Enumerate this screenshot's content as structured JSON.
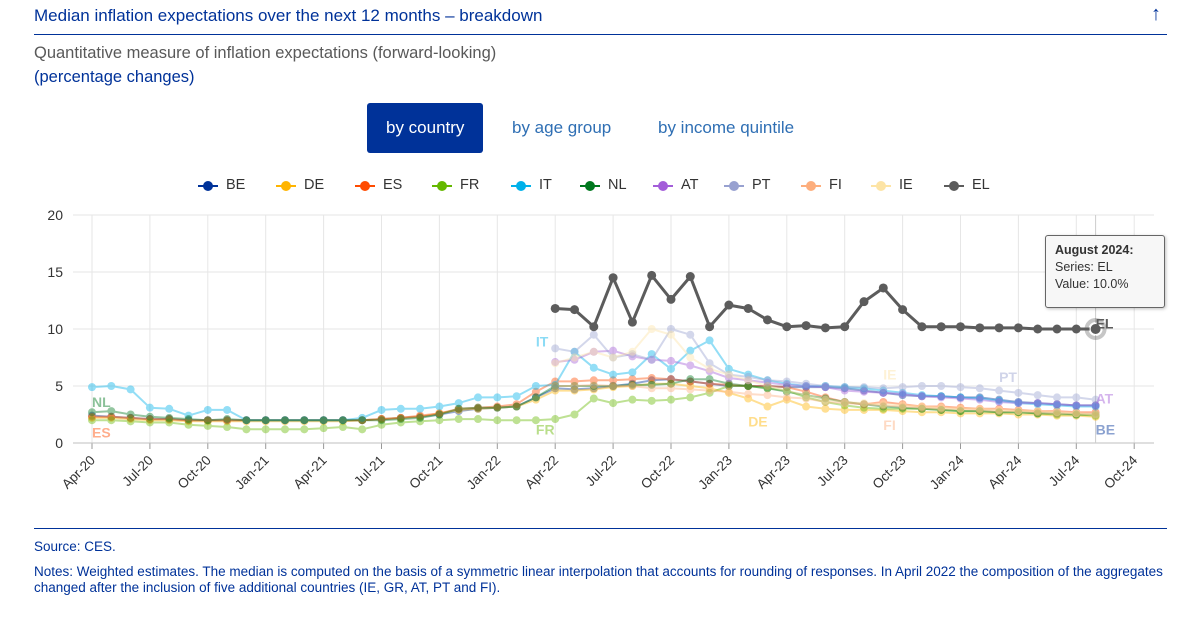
{
  "header": {
    "title": "Median inflation expectations over the next 12 months – breakdown",
    "arrow_icon": "arrow-up-icon"
  },
  "subtitle": "Quantitative measure of inflation expectations (forward-looking)",
  "subtitle2": "(percentage changes)",
  "tabs": [
    {
      "label": "by country",
      "active": true
    },
    {
      "label": "by age group",
      "active": false
    },
    {
      "label": "by income quintile",
      "active": false
    }
  ],
  "tooltip": {
    "title": "August 2024:",
    "series": "Series: EL",
    "value": "Value: 10.0%"
  },
  "footer": {
    "source": "Source: CES.",
    "notes": "Notes: Weighted estimates. The median is computed on the basis of a symmetric linear interpolation that accounts for rounding of responses. In April 2022 the composition of the aggregates changed after the inclusion of five additional countries (IE, GR, AT, PT and FI)."
  },
  "chart_data": {
    "type": "line",
    "title": "",
    "xlabel": "",
    "ylabel": "",
    "ylim": [
      0,
      20
    ],
    "yticks": [
      "0",
      "5",
      "10",
      "15",
      "20"
    ],
    "xticks": [
      "Apr-20",
      "Jul-20",
      "Oct-20",
      "Jan-21",
      "Apr-21",
      "Jul-21",
      "Oct-21",
      "Jan-22",
      "Apr-22",
      "Jul-22",
      "Oct-22",
      "Jan-23",
      "Apr-23",
      "Jul-23",
      "Oct-23",
      "Jan-24",
      "Apr-24",
      "Jul-24",
      "Oct-24"
    ],
    "xtick_month_index": [
      0,
      3,
      6,
      9,
      12,
      15,
      18,
      21,
      24,
      27,
      30,
      33,
      36,
      39,
      42,
      45,
      48,
      51,
      54
    ],
    "x_start": "Apr-20",
    "x_end": "Aug-24",
    "grid": true,
    "legend_position": "top",
    "highlighted_series": "EL",
    "series": [
      {
        "name": "BE",
        "color": "#003299",
        "start_index": 0,
        "values": [
          2.4,
          2.3,
          2.2,
          2.1,
          2.1,
          2.0,
          2.0,
          2.0,
          2.0,
          2.0,
          2.0,
          2.0,
          2.0,
          2.0,
          2.0,
          2.1,
          2.2,
          2.3,
          2.5,
          2.8,
          3.0,
          3.1,
          3.2,
          4.0,
          4.8,
          4.7,
          4.8,
          5.0,
          5.2,
          5.5,
          5.6,
          5.4,
          5.2,
          5.0,
          5.0,
          5.0,
          4.9,
          4.9,
          4.9,
          4.8,
          4.6,
          4.4,
          4.2,
          4.1,
          4.1,
          4.0,
          4.0,
          3.8,
          3.6,
          3.5,
          3.4,
          3.3,
          3.3
        ]
      },
      {
        "name": "DE",
        "color": "#ffb400",
        "start_index": 0,
        "values": [
          2.2,
          2.2,
          2.1,
          2.0,
          2.0,
          1.9,
          1.9,
          1.9,
          1.9,
          1.9,
          1.9,
          1.9,
          1.9,
          1.9,
          2.0,
          2.1,
          2.2,
          2.3,
          2.6,
          2.9,
          3.0,
          3.1,
          3.2,
          3.8,
          4.6,
          4.6,
          4.7,
          4.9,
          5.0,
          5.2,
          5.2,
          5.0,
          4.8,
          4.4,
          3.9,
          3.2,
          3.8,
          3.2,
          3.0,
          2.9,
          2.9,
          2.9,
          2.8,
          2.7,
          2.7,
          2.6,
          2.6,
          2.6,
          2.5,
          2.5,
          2.4,
          2.4,
          2.3
        ]
      },
      {
        "name": "ES",
        "color": "#ff4b00",
        "start_index": 0,
        "values": [
          2.3,
          2.3,
          2.2,
          2.1,
          2.1,
          2.0,
          2.0,
          2.0,
          2.0,
          2.0,
          2.0,
          2.0,
          2.0,
          2.0,
          2.0,
          2.1,
          2.2,
          2.4,
          2.6,
          3.0,
          3.1,
          3.2,
          3.4,
          4.5,
          5.4,
          5.4,
          5.5,
          5.5,
          5.6,
          5.7,
          5.6,
          5.4,
          5.2,
          5.1,
          5.0,
          5.0,
          4.9,
          4.5,
          4.0,
          3.6,
          3.4,
          3.6,
          3.4,
          3.2,
          3.2,
          3.1,
          3.0,
          3.0,
          2.9,
          2.8,
          2.8,
          2.7,
          2.7
        ]
      },
      {
        "name": "FR",
        "color": "#65b800",
        "start_index": 0,
        "values": [
          2.0,
          2.0,
          1.9,
          1.8,
          1.8,
          1.6,
          1.5,
          1.4,
          1.2,
          1.2,
          1.2,
          1.2,
          1.3,
          1.4,
          1.2,
          1.6,
          1.8,
          1.9,
          2.0,
          2.1,
          2.1,
          2.0,
          2.0,
          2.0,
          2.1,
          2.5,
          3.9,
          3.5,
          3.8,
          3.7,
          3.8,
          4.0,
          4.4,
          5.0,
          5.0,
          4.8,
          4.6,
          4.0,
          3.6,
          3.3,
          3.1,
          3.0,
          3.0,
          3.0,
          2.9,
          2.8,
          2.8,
          2.7,
          2.7,
          2.6,
          2.5,
          2.5,
          2.4
        ]
      },
      {
        "name": "IT",
        "color": "#00b1ea",
        "start_index": 0,
        "values": [
          4.9,
          5.0,
          4.7,
          3.1,
          3.0,
          2.4,
          2.9,
          2.9,
          2.0,
          2.0,
          2.0,
          2.0,
          2.0,
          2.0,
          2.2,
          2.9,
          3.0,
          3.0,
          3.2,
          3.5,
          4.0,
          4.0,
          4.1,
          5.0,
          5.1,
          8.0,
          6.6,
          6.0,
          6.2,
          7.8,
          6.5,
          8.1,
          9.0,
          6.5,
          6.0,
          5.5,
          5.2,
          5.0,
          5.0,
          4.9,
          4.8,
          4.6,
          4.4,
          4.2,
          4.1,
          4.0,
          3.9,
          3.7,
          3.5,
          3.4,
          3.3,
          3.2,
          3.2
        ]
      },
      {
        "name": "NL",
        "color": "#00781e",
        "start_index": 0,
        "values": [
          2.7,
          2.8,
          2.5,
          2.3,
          2.2,
          2.1,
          2.0,
          2.1,
          2.0,
          2.0,
          2.0,
          2.0,
          2.0,
          2.0,
          2.0,
          2.0,
          2.1,
          2.2,
          2.5,
          3.0,
          3.1,
          3.1,
          3.2,
          4.0,
          5.0,
          5.0,
          5.0,
          5.0,
          5.1,
          5.1,
          5.2,
          5.6,
          5.6,
          5.2,
          5.0,
          4.8,
          4.5,
          4.2,
          3.9,
          3.6,
          3.4,
          3.2,
          3.1,
          3.0,
          2.9,
          2.8,
          2.8,
          2.7,
          2.7,
          2.6,
          2.6,
          2.5,
          2.5
        ]
      },
      {
        "name": "AT",
        "color": "#a35dd9",
        "start_index": 24,
        "values": [
          7.1,
          7.3,
          8.0,
          8.1,
          7.6,
          7.3,
          7.2,
          6.8,
          6.3,
          5.7,
          5.5,
          5.3,
          5.1,
          5.0,
          4.9,
          4.6,
          4.5,
          4.4,
          4.3,
          4.1,
          4.0,
          3.9,
          3.8,
          3.6,
          3.5,
          3.5,
          3.4,
          3.3,
          3.3
        ]
      },
      {
        "name": "PT",
        "color": "#98a1d0",
        "start_index": 24,
        "values": [
          8.3,
          8.0,
          9.5,
          7.5,
          7.8,
          7.3,
          10.0,
          9.5,
          7.0,
          6.0,
          5.8,
          5.5,
          5.4,
          5.2,
          5.0,
          4.9,
          4.9,
          4.8,
          4.9,
          5.0,
          5.0,
          4.9,
          4.8,
          4.6,
          4.4,
          4.2,
          4.0,
          4.0,
          3.8
        ]
      },
      {
        "name": "FI",
        "color": "#fdae7d",
        "start_index": 24,
        "values": [
          5.0,
          5.0,
          5.1,
          5.0,
          5.0,
          4.8,
          4.8,
          4.7,
          4.6,
          4.5,
          4.3,
          4.2,
          4.0,
          3.9,
          3.6,
          3.5,
          3.4,
          3.3,
          3.2,
          3.1,
          3.0,
          3.0,
          2.9,
          2.8,
          2.8,
          2.7,
          2.6,
          2.6,
          2.5
        ]
      },
      {
        "name": "IE",
        "color": "#fde4a5",
        "start_index": 24,
        "values": [
          7.0,
          7.5,
          8.0,
          7.5,
          8.0,
          10.0,
          9.5,
          7.5,
          6.5,
          6.0,
          5.5,
          5.0,
          4.6,
          4.2,
          3.8,
          3.6,
          3.5,
          3.4,
          3.3,
          3.2,
          3.1,
          3.0,
          3.0,
          2.9,
          2.8,
          2.8,
          2.7,
          2.6,
          2.5
        ]
      },
      {
        "name": "EL",
        "color": "#5c5c5c",
        "start_index": 24,
        "values": [
          11.8,
          11.7,
          10.2,
          14.5,
          10.6,
          14.7,
          12.6,
          14.6,
          10.2,
          12.1,
          11.8,
          10.8,
          10.2,
          10.3,
          10.1,
          10.2,
          12.4,
          13.6,
          11.7,
          10.2,
          10.2,
          10.2,
          10.1,
          10.1,
          10.1,
          10.0,
          10.0,
          10.0,
          10.0
        ]
      }
    ],
    "series_labels": [
      {
        "text": "NL",
        "series": "NL",
        "month_index": 0,
        "value": 3.6
      },
      {
        "text": "ES",
        "series": "ES",
        "month_index": 0,
        "value": 0.9
      },
      {
        "text": "IT",
        "series": "IT",
        "month_index": 23,
        "value": 8.9
      },
      {
        "text": "FR",
        "series": "FR",
        "month_index": 23,
        "value": 1.2
      },
      {
        "text": "DE",
        "series": "DE",
        "month_index": 34,
        "value": 1.9
      },
      {
        "text": "IE",
        "series": "IE",
        "month_index": 41,
        "value": 6.0
      },
      {
        "text": "FI",
        "series": "FI",
        "month_index": 41,
        "value": 1.6
      },
      {
        "text": "PT",
        "series": "PT",
        "month_index": 47,
        "value": 5.8
      },
      {
        "text": "AT",
        "series": "AT",
        "month_index": 52,
        "value": 3.9
      },
      {
        "text": "BE",
        "series": "BE",
        "month_index": 52,
        "value": 1.2
      },
      {
        "text": "EL",
        "series": "EL",
        "month_index": 52,
        "value": 10.5
      }
    ]
  }
}
